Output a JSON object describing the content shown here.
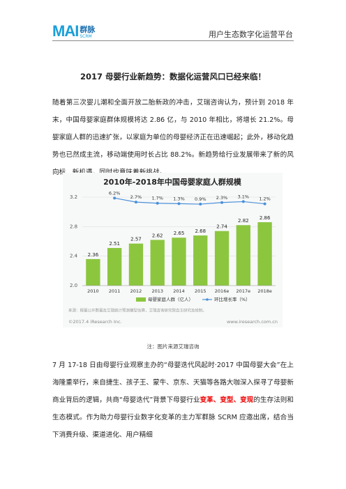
{
  "header": {
    "logo_mark": "MAI",
    "logo_text": "群脉",
    "logo_sub": "SCRM",
    "tagline": "用户生态数字化运营平台"
  },
  "title": "2017 母婴行业新趋势：数据化运营风口已经来临！",
  "paragraph_1": "随着第三次婴儿潮和全面开放二胎新政的冲击，艾瑞咨询认为，预计到 2018 年末，中国母婴家庭群体规模将达 2.86 亿，与 2010 年相比，将增长 21.2%。母婴家庭人群的迅速扩张，以家庭为单位的母婴经济正在迅速崛起；此外，移动化趋势也已然成主流，移动端使用时长占比 88.2%。新趋势给行业发展带来了新的风向标、新机遇，同时也意味着新挑战。",
  "chart_data": {
    "type": "bar",
    "title": "2010年-2018年中国母婴家庭人群规模",
    "categories": [
      "2010",
      "2011",
      "2012",
      "2013",
      "2014",
      "2015",
      "2016e",
      "2017e",
      "2018e"
    ],
    "series": [
      {
        "name": "母婴家庭人群（亿人）",
        "color": "#8cc63f",
        "values": [
          2.36,
          2.51,
          2.57,
          2.62,
          2.65,
          2.68,
          2.74,
          2.82,
          2.86
        ]
      },
      {
        "name": "环比增长率（%）",
        "color": "#4a90d9",
        "axis": "y2",
        "type": "line",
        "values": [
          null,
          6.2,
          2.7,
          1.7,
          1.3,
          0.9,
          2.3,
          3.1,
          1.2
        ],
        "value_labels": [
          null,
          "6.2%",
          "2.7%",
          "1.7%",
          "1.3%",
          "0.9%",
          "2.3%",
          "3.1%",
          "1.2%"
        ]
      }
    ],
    "ylim": [
      2.0,
      3.2
    ],
    "yticks": [
      {
        "value": 2.0,
        "label": "2.0"
      },
      2.4,
      2.8,
      3.2
    ],
    "y2lim": [
      -70,
      7
    ],
    "grid": true,
    "legend": "bottom",
    "source": "来源：根据公开数据及艾瑞统计预测模型估算，艾瑞咨询研究院自主研究及绘制。",
    "copyright": "©2017.4 iResearch Inc.",
    "website": "www.iresearch.com.cn"
  },
  "caption": "注：图片来源艾瑞咨询",
  "paragraph_2": [
    "7 月 17-18 日由母婴行业观察主办的“母婴迭代风起时·2017 中国母婴大会”在上海隆重举行，来自捷生、孩子王、蒙牛、京东、天猫等各路大咖深入探寻了母婴新商业背后的逻辑，共商“母婴迭代”背景下母婴行业",
    "变革、变型、变现",
    "的生存法则和生态模式。作为助力母婴行业数字化变革的主力军群脉 SCRM 应邀出席，结合当下消费升级、渠道进化、用户精细"
  ]
}
